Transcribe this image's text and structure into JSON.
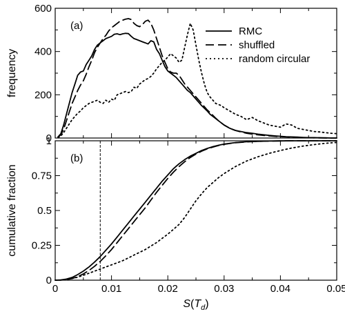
{
  "chart_data": [
    {
      "type": "line",
      "panel_label": "(a)",
      "xlabel": "",
      "ylabel": "frequency",
      "xlim": [
        0,
        0.05
      ],
      "ylim": [
        0,
        600
      ],
      "xticks": [
        "0",
        "0.01",
        "0.02",
        "0.03",
        "0.04",
        "0.05"
      ],
      "xtick_values": [
        0,
        0.01,
        0.02,
        0.03,
        0.04,
        0.05
      ],
      "show_xtick_labels": false,
      "yticks": [
        "0",
        "200",
        "400",
        "600"
      ],
      "ytick_values": [
        0,
        200,
        400,
        600
      ],
      "legend": "top-right",
      "series": [
        {
          "name": "RMC",
          "style": "solid",
          "x": [
            0.0005,
            0.001,
            0.0015,
            0.002,
            0.0025,
            0.003,
            0.0035,
            0.004,
            0.0045,
            0.005,
            0.0055,
            0.006,
            0.0065,
            0.007,
            0.0075,
            0.008,
            0.0085,
            0.009,
            0.0095,
            0.01,
            0.0105,
            0.011,
            0.0115,
            0.012,
            0.0125,
            0.013,
            0.0135,
            0.014,
            0.0145,
            0.015,
            0.0155,
            0.016,
            0.0165,
            0.017,
            0.0175,
            0.018,
            0.0185,
            0.019,
            0.0195,
            0.02,
            0.0205,
            0.021,
            0.0215,
            0.022,
            0.0225,
            0.023,
            0.0235,
            0.024,
            0.0245,
            0.025,
            0.0255,
            0.026,
            0.0265,
            0.027,
            0.0275,
            0.028,
            0.0285,
            0.029,
            0.0295,
            0.03,
            0.031,
            0.032,
            0.033,
            0.034,
            0.035,
            0.036,
            0.037,
            0.038,
            0.039,
            0.04,
            0.041,
            0.042,
            0.043,
            0.044,
            0.045,
            0.046,
            0.047,
            0.048,
            0.049,
            0.05
          ],
          "values": [
            5,
            20,
            60,
            110,
            160,
            210,
            250,
            290,
            305,
            310,
            340,
            360,
            380,
            410,
            430,
            440,
            450,
            460,
            465,
            470,
            480,
            482,
            478,
            482,
            484,
            483,
            470,
            460,
            455,
            450,
            445,
            440,
            435,
            450,
            445,
            410,
            390,
            360,
            330,
            310,
            300,
            290,
            280,
            265,
            250,
            235,
            220,
            210,
            195,
            180,
            165,
            150,
            138,
            125,
            110,
            100,
            90,
            80,
            70,
            60,
            45,
            35,
            30,
            25,
            22,
            18,
            15,
            12,
            10,
            8,
            6,
            5,
            4,
            3,
            2,
            2,
            1,
            1,
            0,
            0
          ]
        },
        {
          "name": "shuffled",
          "style": "dashed",
          "x": [
            0.0005,
            0.001,
            0.0015,
            0.002,
            0.0025,
            0.003,
            0.0035,
            0.004,
            0.0045,
            0.005,
            0.0055,
            0.006,
            0.0065,
            0.007,
            0.0075,
            0.008,
            0.0085,
            0.009,
            0.0095,
            0.01,
            0.0105,
            0.011,
            0.0115,
            0.012,
            0.0125,
            0.013,
            0.0135,
            0.014,
            0.0145,
            0.015,
            0.0155,
            0.016,
            0.0165,
            0.017,
            0.0175,
            0.018,
            0.0185,
            0.019,
            0.0195,
            0.02,
            0.0205,
            0.021,
            0.0215,
            0.022,
            0.0225,
            0.023,
            0.0235,
            0.024,
            0.0245,
            0.025,
            0.0255,
            0.026,
            0.0265,
            0.027,
            0.0275,
            0.028,
            0.0285,
            0.029,
            0.0295,
            0.03,
            0.031,
            0.032,
            0.033,
            0.034,
            0.035,
            0.036,
            0.037,
            0.038,
            0.039,
            0.04,
            0.041,
            0.042,
            0.043,
            0.044,
            0.045,
            0.046,
            0.047,
            0.048,
            0.049,
            0.05
          ],
          "values": [
            5,
            15,
            40,
            80,
            120,
            160,
            190,
            220,
            245,
            265,
            295,
            330,
            360,
            395,
            420,
            440,
            460,
            475,
            495,
            510,
            520,
            530,
            540,
            545,
            550,
            552,
            548,
            530,
            520,
            515,
            525,
            540,
            545,
            530,
            500,
            460,
            420,
            380,
            350,
            320,
            305,
            300,
            300,
            290,
            270,
            250,
            235,
            220,
            205,
            190,
            175,
            160,
            145,
            130,
            118,
            105,
            92,
            80,
            70,
            60,
            45,
            35,
            28,
            22,
            18,
            15,
            12,
            10,
            8,
            6,
            5,
            4,
            3,
            2,
            2,
            1,
            1,
            0,
            0,
            0
          ]
        },
        {
          "name": "random circular",
          "style": "dotted",
          "x": [
            0.0005,
            0.001,
            0.0015,
            0.002,
            0.0025,
            0.003,
            0.0035,
            0.004,
            0.0045,
            0.005,
            0.0055,
            0.006,
            0.0065,
            0.007,
            0.0075,
            0.008,
            0.0085,
            0.009,
            0.0095,
            0.01,
            0.0105,
            0.011,
            0.0115,
            0.012,
            0.0125,
            0.013,
            0.0135,
            0.014,
            0.0145,
            0.015,
            0.0155,
            0.016,
            0.0165,
            0.017,
            0.0175,
            0.018,
            0.0185,
            0.019,
            0.0195,
            0.02,
            0.0205,
            0.021,
            0.0215,
            0.022,
            0.0225,
            0.023,
            0.0235,
            0.024,
            0.0245,
            0.025,
            0.0255,
            0.026,
            0.0265,
            0.027,
            0.0275,
            0.028,
            0.0285,
            0.029,
            0.0295,
            0.03,
            0.031,
            0.032,
            0.033,
            0.034,
            0.035,
            0.036,
            0.037,
            0.038,
            0.039,
            0.04,
            0.041,
            0.042,
            0.043,
            0.044,
            0.045,
            0.046,
            0.047,
            0.048,
            0.049,
            0.05
          ],
          "values": [
            2,
            10,
            25,
            45,
            65,
            85,
            100,
            115,
            125,
            140,
            150,
            160,
            165,
            170,
            175,
            165,
            160,
            175,
            165,
            180,
            175,
            200,
            205,
            210,
            215,
            210,
            215,
            235,
            230,
            250,
            260,
            270,
            275,
            285,
            300,
            320,
            335,
            350,
            360,
            375,
            390,
            380,
            370,
            350,
            360,
            420,
            480,
            530,
            500,
            430,
            360,
            300,
            250,
            210,
            190,
            175,
            160,
            155,
            150,
            140,
            125,
            110,
            100,
            85,
            95,
            80,
            70,
            60,
            55,
            50,
            65,
            60,
            45,
            40,
            35,
            30,
            28,
            25,
            22,
            20
          ]
        }
      ]
    },
    {
      "type": "line",
      "panel_label": "(b)",
      "xlabel": "S(T_d)",
      "ylabel": "cumulative fraction",
      "xlim": [
        0,
        0.05
      ],
      "ylim": [
        0,
        1
      ],
      "xticks": [
        "0",
        "0.01",
        "0.02",
        "0.03",
        "0.04",
        "0.05"
      ],
      "xtick_values": [
        0,
        0.01,
        0.02,
        0.03,
        0.04,
        0.05
      ],
      "show_xtick_labels": true,
      "yticks": [
        "0",
        "0.25",
        "0.5",
        "0.75",
        "1"
      ],
      "ytick_values": [
        0,
        0.25,
        0.5,
        0.75,
        1
      ],
      "vline_x": 0.008,
      "series": [
        {
          "name": "RMC",
          "style": "solid",
          "x": [
            0,
            0.001,
            0.002,
            0.003,
            0.004,
            0.005,
            0.006,
            0.007,
            0.008,
            0.009,
            0.01,
            0.011,
            0.012,
            0.013,
            0.014,
            0.015,
            0.016,
            0.017,
            0.018,
            0.019,
            0.02,
            0.021,
            0.022,
            0.023,
            0.024,
            0.025,
            0.026,
            0.027,
            0.028,
            0.029,
            0.03,
            0.032,
            0.034,
            0.036,
            0.038,
            0.04,
            0.042,
            0.045,
            0.05
          ],
          "values": [
            0,
            0.002,
            0.008,
            0.02,
            0.04,
            0.065,
            0.095,
            0.13,
            0.17,
            0.215,
            0.26,
            0.31,
            0.36,
            0.41,
            0.46,
            0.51,
            0.56,
            0.61,
            0.66,
            0.71,
            0.755,
            0.8,
            0.835,
            0.865,
            0.89,
            0.91,
            0.93,
            0.945,
            0.958,
            0.968,
            0.976,
            0.987,
            0.993,
            0.996,
            0.998,
            0.999,
            1,
            1,
            1
          ]
        },
        {
          "name": "shuffled",
          "style": "dashed",
          "x": [
            0,
            0.001,
            0.002,
            0.003,
            0.004,
            0.005,
            0.006,
            0.007,
            0.008,
            0.009,
            0.01,
            0.011,
            0.012,
            0.013,
            0.014,
            0.015,
            0.016,
            0.017,
            0.018,
            0.019,
            0.02,
            0.021,
            0.022,
            0.023,
            0.024,
            0.025,
            0.026,
            0.027,
            0.028,
            0.029,
            0.03,
            0.032,
            0.034,
            0.036,
            0.038,
            0.04,
            0.042,
            0.045,
            0.05
          ],
          "values": [
            0,
            0.001,
            0.004,
            0.012,
            0.025,
            0.045,
            0.07,
            0.1,
            0.135,
            0.175,
            0.22,
            0.27,
            0.32,
            0.37,
            0.42,
            0.47,
            0.52,
            0.575,
            0.63,
            0.68,
            0.73,
            0.775,
            0.815,
            0.85,
            0.88,
            0.905,
            0.925,
            0.942,
            0.955,
            0.966,
            0.975,
            0.986,
            0.992,
            0.996,
            0.998,
            0.999,
            1,
            1,
            1
          ]
        },
        {
          "name": "random circular",
          "style": "dotted",
          "x": [
            0,
            0.001,
            0.002,
            0.003,
            0.004,
            0.005,
            0.006,
            0.007,
            0.008,
            0.009,
            0.01,
            0.011,
            0.012,
            0.013,
            0.014,
            0.015,
            0.016,
            0.017,
            0.018,
            0.019,
            0.02,
            0.021,
            0.022,
            0.023,
            0.024,
            0.025,
            0.026,
            0.027,
            0.028,
            0.029,
            0.03,
            0.032,
            0.034,
            0.036,
            0.038,
            0.04,
            0.042,
            0.044,
            0.046,
            0.048,
            0.05
          ],
          "values": [
            0,
            0.001,
            0.005,
            0.012,
            0.022,
            0.035,
            0.05,
            0.065,
            0.08,
            0.095,
            0.11,
            0.125,
            0.14,
            0.16,
            0.18,
            0.2,
            0.22,
            0.245,
            0.27,
            0.3,
            0.33,
            0.365,
            0.4,
            0.45,
            0.51,
            0.57,
            0.62,
            0.665,
            0.7,
            0.735,
            0.765,
            0.815,
            0.855,
            0.885,
            0.91,
            0.93,
            0.948,
            0.962,
            0.973,
            0.982,
            0.988
          ]
        }
      ]
    }
  ]
}
